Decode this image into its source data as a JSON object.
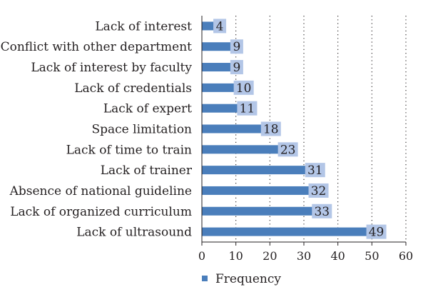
{
  "chart_data": {
    "type": "bar",
    "orientation": "horizontal",
    "categories": [
      "Lack of interest",
      "Conflict with other department",
      "Lack of interest by faculty",
      "Lack of credentials",
      "Lack of expert",
      "Space limitation",
      "Lack of time to train",
      "Lack of trainer",
      "Absence of national guideline",
      "Lack of organized curriculum",
      "Lack of ultrasound"
    ],
    "series": [
      {
        "name": "Frequency",
        "values": [
          4,
          9,
          9,
          10,
          11,
          18,
          23,
          31,
          32,
          33,
          49
        ],
        "color": "#4a7ebb"
      }
    ],
    "xlim": [
      0,
      60
    ],
    "xticks": [
      0,
      10,
      20,
      30,
      40,
      50,
      60
    ],
    "grid": "vertical dotted",
    "legend": "bottom-left",
    "label_box_color": "#b3c6e7"
  }
}
